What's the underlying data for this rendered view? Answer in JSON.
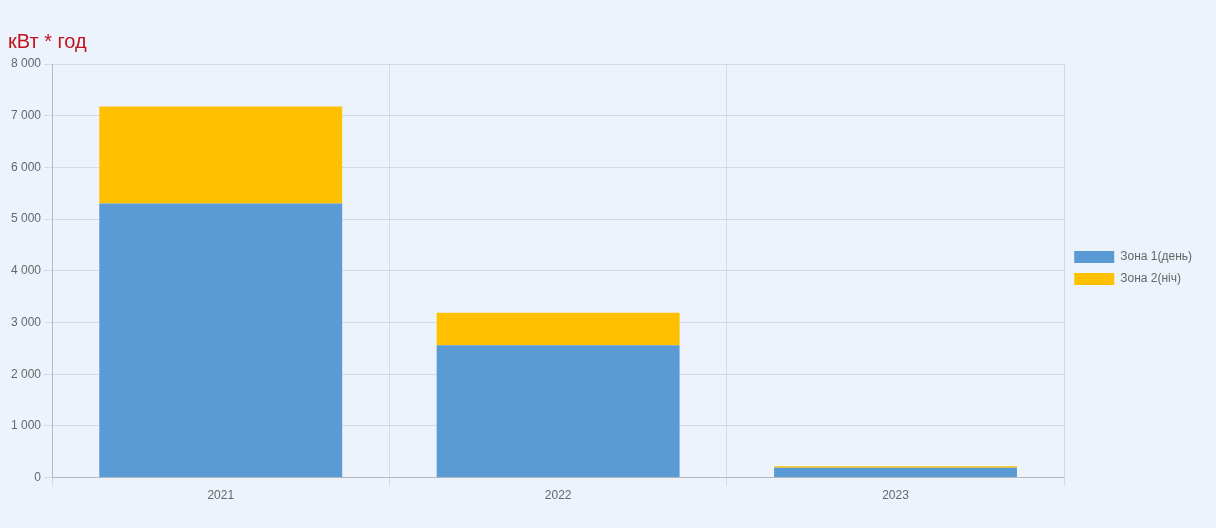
{
  "chart_data": {
    "type": "bar",
    "title": "кВт * год",
    "categories": [
      "2021",
      "2022",
      "2023"
    ],
    "series": [
      {
        "name": "Зона 1(день)",
        "color": "#5b9bd5",
        "values": [
          5300,
          2560,
          190
        ]
      },
      {
        "name": "Зона 2(ніч)",
        "color": "#ffc000",
        "values": [
          1880,
          630,
          30
        ]
      }
    ],
    "stacked": true,
    "ylim": [
      0,
      8000
    ],
    "yticks": [
      0,
      {
        "value": 1000,
        "label": "1 000"
      },
      {
        "value": 2000,
        "label": "2 000"
      },
      {
        "value": 3000,
        "label": "3 000"
      },
      {
        "value": 4000,
        "label": "4 000"
      },
      {
        "value": 5000,
        "label": "5 000"
      },
      {
        "value": 6000,
        "label": "6 000"
      },
      {
        "value": 7000,
        "label": "7 000"
      },
      {
        "value": 8000,
        "label": "8 000"
      }
    ],
    "grid": true,
    "legend": "right"
  }
}
